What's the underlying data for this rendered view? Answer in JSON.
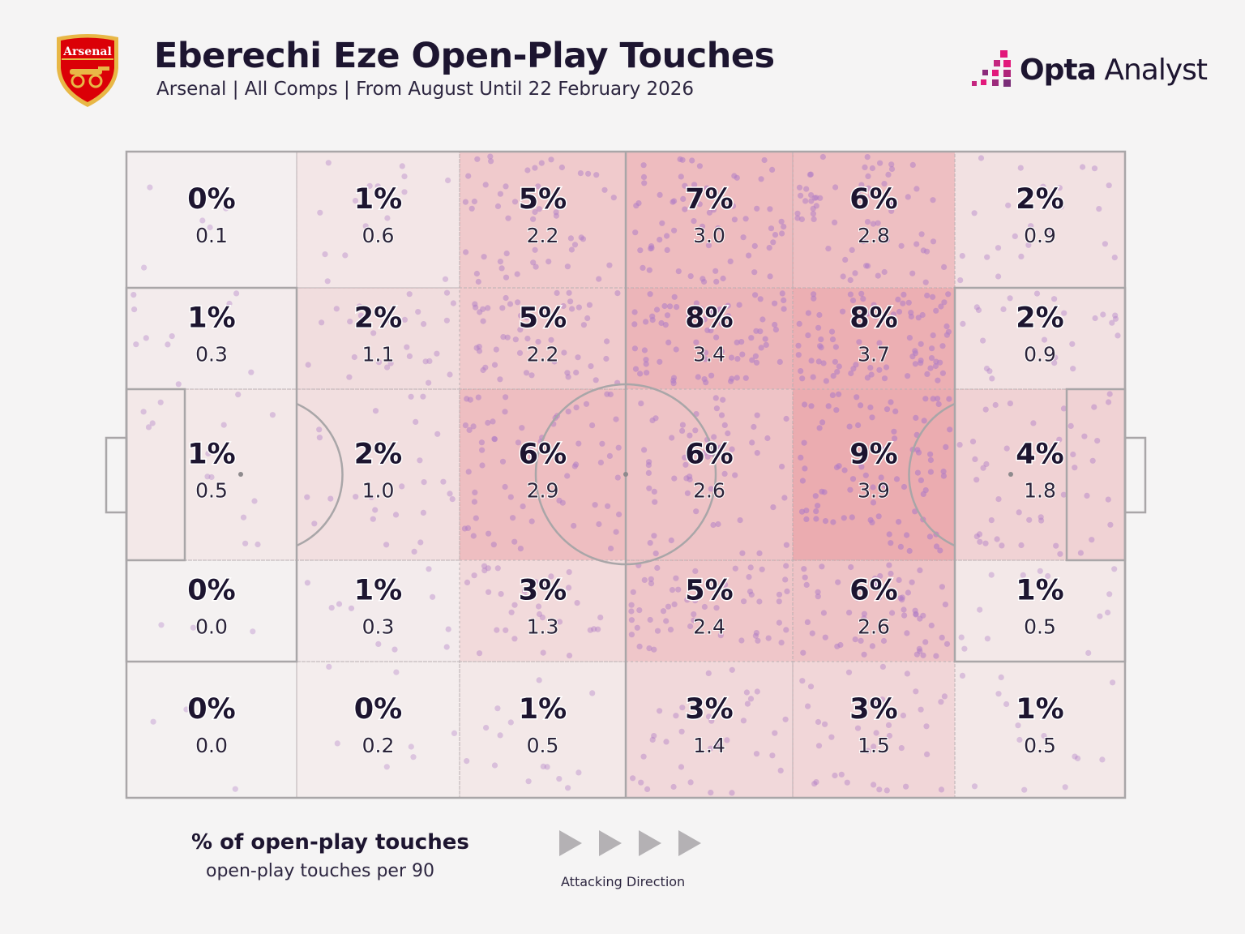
{
  "header": {
    "title": "Eberechi Eze Open-Play Touches",
    "subtitle": "Arsenal | All Comps | From August Until 22 February 2026",
    "crest_label": "Arsenal",
    "brand_bold": "Opta",
    "brand_light": "Analyst"
  },
  "colors": {
    "background": "#f5f4f4",
    "text": "#1d1530",
    "pitch_line": "#a9a6a8",
    "heat": "#e36a72",
    "dot": "#b07cc6",
    "brand_accent": "#e2197b",
    "crest_red": "#db0007",
    "crest_gold": "#e8b746"
  },
  "chart_data": {
    "type": "heatmap",
    "title": "Eberechi Eze Open-Play Touches",
    "subtitle": "Arsenal | All Comps | From August Until 22 February 2026",
    "rows": [
      "top",
      "upper",
      "middle",
      "lower",
      "bottom"
    ],
    "columns": [
      "zone-1",
      "zone-2",
      "zone-3",
      "zone-4",
      "zone-5",
      "zone-6"
    ],
    "percent_labels": [
      [
        "0%",
        "1%",
        "5%",
        "7%",
        "6%",
        "2%"
      ],
      [
        "1%",
        "2%",
        "5%",
        "8%",
        "8%",
        "2%"
      ],
      [
        "1%",
        "2%",
        "6%",
        "6%",
        "9%",
        "4%"
      ],
      [
        "0%",
        "1%",
        "3%",
        "5%",
        "6%",
        "1%"
      ],
      [
        "0%",
        "0%",
        "1%",
        "3%",
        "3%",
        "1%"
      ]
    ],
    "per90_labels": [
      [
        "0.1",
        "0.6",
        "2.2",
        "3.0",
        "2.8",
        "0.9"
      ],
      [
        "0.3",
        "1.1",
        "2.2",
        "3.4",
        "3.7",
        "0.9"
      ],
      [
        "0.5",
        "1.0",
        "2.9",
        "2.6",
        "3.9",
        "1.8"
      ],
      [
        "0.0",
        "0.3",
        "1.3",
        "2.4",
        "2.6",
        "0.5"
      ],
      [
        "0.0",
        "0.2",
        "0.5",
        "1.4",
        "1.5",
        "0.5"
      ]
    ],
    "legend": {
      "primary": "% of open-play touches",
      "secondary": "open-play touches per 90"
    },
    "direction_label": "Attacking Direction"
  }
}
